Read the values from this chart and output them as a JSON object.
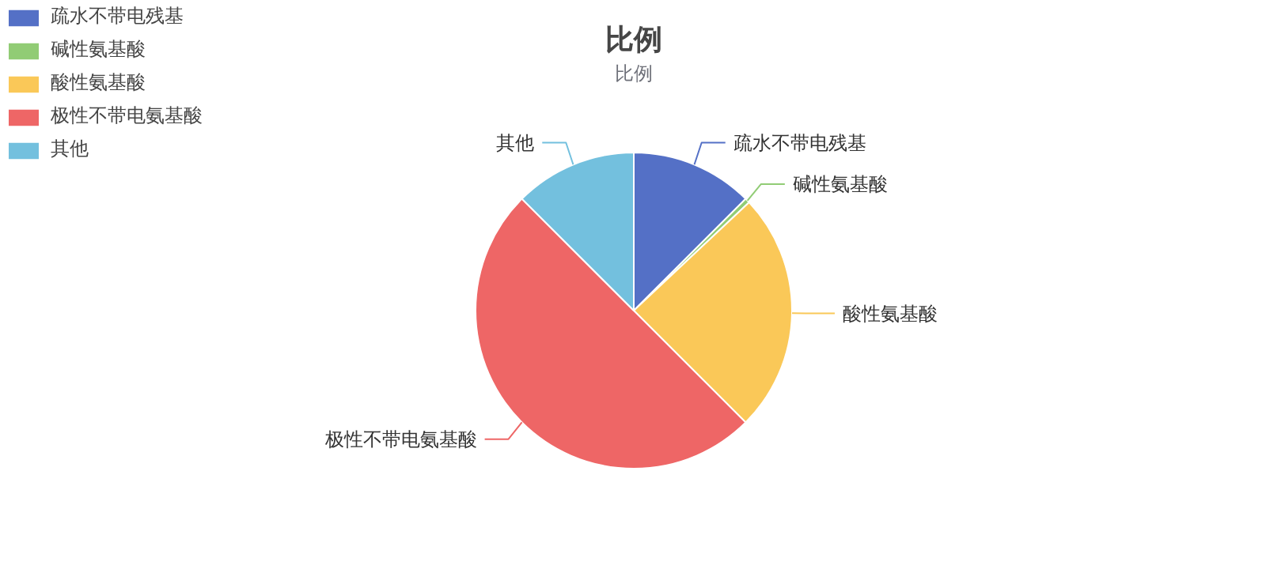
{
  "chart_data": {
    "type": "pie",
    "title": "比例",
    "subtitle": "比例",
    "categories": [
      "疏水不带电残基",
      "碱性氨基酸",
      "酸性氨基酸",
      "极性不带电氨基酸",
      "其他"
    ],
    "values": [
      12.5,
      0.5,
      24.5,
      50,
      12.5
    ],
    "colors": [
      "#5470c6",
      "#91cc75",
      "#fac858",
      "#ee6666",
      "#73c0de"
    ],
    "legend": "top left"
  }
}
